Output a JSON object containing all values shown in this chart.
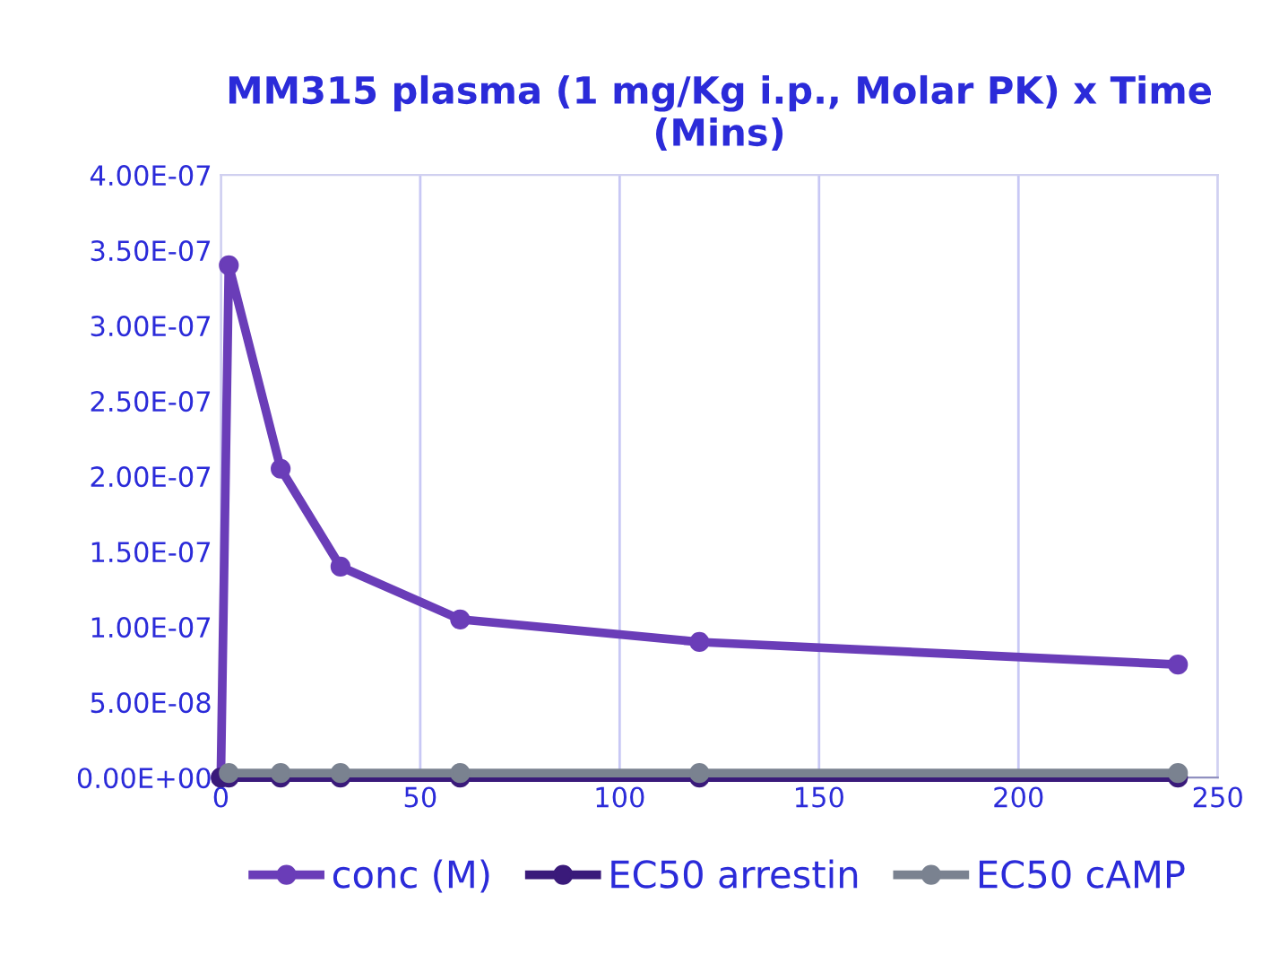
{
  "chart_data": {
    "type": "line",
    "title": "MM315 plasma (1 mg/Kg i.p., Molar PK) x Time (Mins)",
    "x": [
      0,
      2,
      15,
      30,
      60,
      120,
      240
    ],
    "series": [
      {
        "name": "conc (M)",
        "color": "#6a3db8",
        "values": [
          0,
          3.4e-07,
          2.05e-07,
          1.4e-07,
          1.05e-07,
          9e-08,
          7.5e-08
        ]
      },
      {
        "name": "EC50 arrestin",
        "color": "#3a1a7a",
        "values": [
          0,
          0,
          0,
          0,
          0,
          0,
          0
        ]
      },
      {
        "name": "EC50 cAMP",
        "color": "#7a8290",
        "values": [
          null,
          3e-09,
          3e-09,
          3e-09,
          3e-09,
          3e-09,
          3e-09
        ]
      }
    ],
    "xlim": [
      0,
      250
    ],
    "xticks": [
      0,
      50,
      100,
      150,
      200,
      250
    ],
    "ylim": [
      0,
      4e-07
    ],
    "yticks": [
      {
        "value": 0,
        "label": "0.00E+00"
      },
      {
        "value": 5e-08,
        "label": "5.00E-08"
      },
      {
        "value": 1e-07,
        "label": "1.00E-07"
      },
      {
        "value": 1.5e-07,
        "label": "1.50E-07"
      },
      {
        "value": 2e-07,
        "label": "2.00E-07"
      },
      {
        "value": 2.5e-07,
        "label": "2.50E-07"
      },
      {
        "value": 3e-07,
        "label": "3.00E-07"
      },
      {
        "value": 3.5e-07,
        "label": "3.50E-07"
      },
      {
        "value": 4e-07,
        "label": "4.00E-07"
      }
    ],
    "grid": "x",
    "legend": "bottom",
    "marker": "circle",
    "line_style": "solid"
  }
}
